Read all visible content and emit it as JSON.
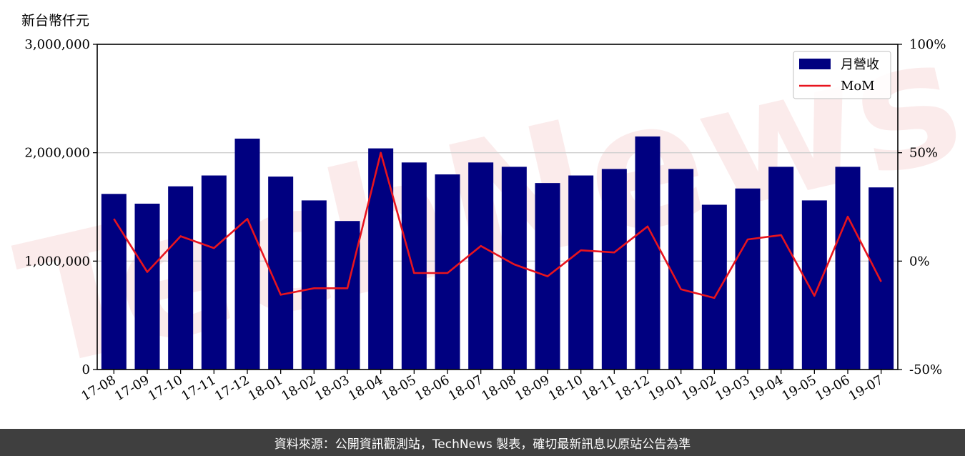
{
  "unit_label": "新台幣仟元",
  "footer_text": "資料來源：公開資訊觀測站，TechNews 製表，確切最新訊息以原站公告為準",
  "watermark_text": "TechNews",
  "colors": {
    "bar": "#000080",
    "line": "#e8141e",
    "grid": "#cfcfcf",
    "footer_bg": "#3f3f3f",
    "watermark": "#f7d2d2"
  },
  "chart_data": {
    "type": "bar",
    "categories": [
      "17-08",
      "17-09",
      "17-10",
      "17-11",
      "17-12",
      "18-01",
      "18-02",
      "18-03",
      "18-04",
      "18-05",
      "18-06",
      "18-07",
      "18-08",
      "18-09",
      "18-10",
      "18-11",
      "18-12",
      "19-01",
      "19-02",
      "19-03",
      "19-04",
      "19-05",
      "19-06",
      "19-07"
    ],
    "series": [
      {
        "name": "月營收",
        "type": "bar",
        "axis": "left",
        "values": [
          1620000,
          1530000,
          1690000,
          1790000,
          2130000,
          1780000,
          1560000,
          1370000,
          2040000,
          1910000,
          1800000,
          1910000,
          1870000,
          1720000,
          1790000,
          1850000,
          2150000,
          1850000,
          1520000,
          1670000,
          1870000,
          1560000,
          1870000,
          1680000
        ]
      },
      {
        "name": "MoM",
        "type": "line",
        "axis": "right",
        "values": [
          19.5,
          -5,
          11.5,
          6,
          19.5,
          -15.5,
          -12.5,
          -12.5,
          50,
          -5.5,
          -5.5,
          7,
          -1.5,
          -7,
          5,
          4,
          16,
          -13,
          -17,
          10,
          12,
          -16,
          20.5,
          -9.5
        ]
      }
    ],
    "y_left": {
      "min": 0,
      "max": 3000000,
      "ticks": [
        0,
        1000000,
        2000000,
        3000000
      ],
      "tick_labels": [
        "0",
        "1,000,000",
        "2,000,000",
        "3,000,000"
      ]
    },
    "y_right": {
      "min": -50,
      "max": 100,
      "ticks": [
        -50,
        0,
        50,
        100
      ],
      "tick_labels": [
        "-50%",
        "0%",
        "50%",
        "100%"
      ]
    },
    "grid": "horizontal",
    "legend_position": "top-right"
  }
}
